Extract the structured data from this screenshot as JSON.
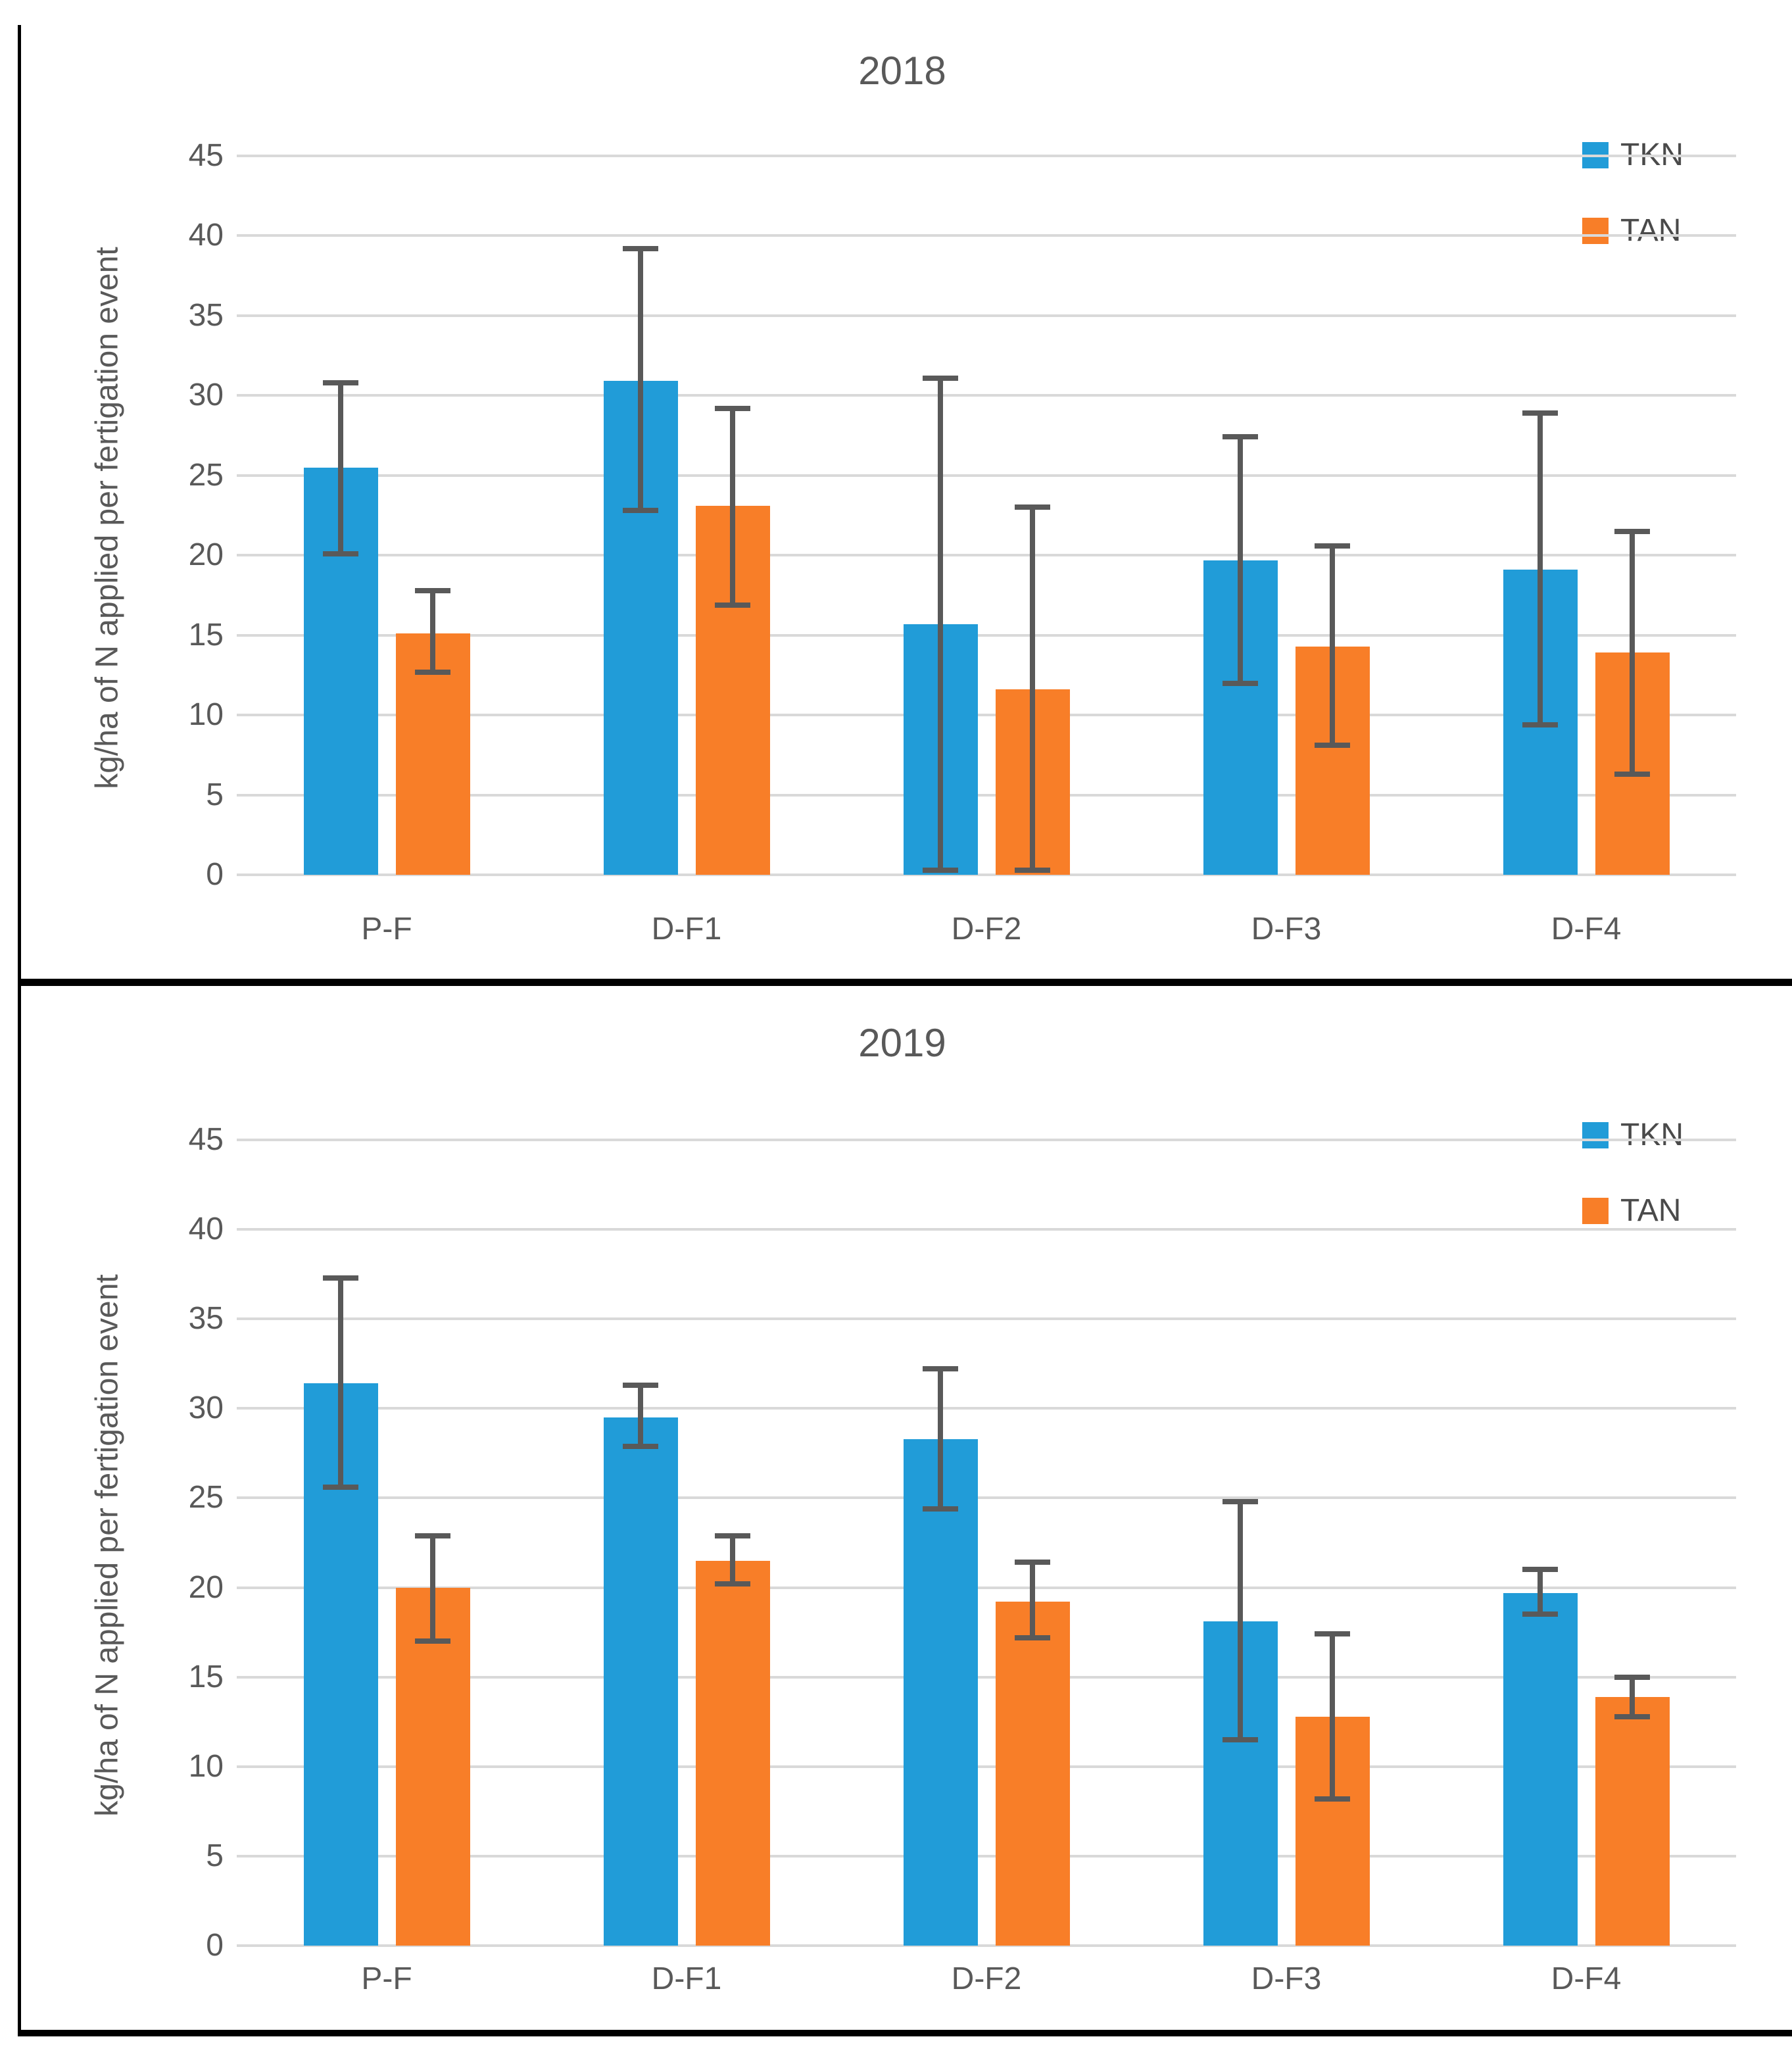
{
  "figure": {
    "background": "#ffffff",
    "border_color": "#000000",
    "gridline_color": "#D9D9D9",
    "error_bar_color": "#595959",
    "text_color": "#595959"
  },
  "chart_data": [
    {
      "type": "bar",
      "title": "2018",
      "ylabel": "kg/ha of N applied per fertigation event",
      "xlabel": "",
      "ylim": [
        0,
        45
      ],
      "yticks": [
        0,
        5,
        10,
        15,
        20,
        25,
        30,
        35,
        40,
        45
      ],
      "grid": true,
      "legend_position": "top-right",
      "categories": [
        "P-F",
        "D-F1",
        "D-F2",
        "D-F3",
        "D-F4"
      ],
      "series": [
        {
          "name": "TKN",
          "color": "#219CD8",
          "values": [
            25.5,
            30.9,
            15.7,
            19.7,
            19.1
          ],
          "error_low": [
            20.1,
            22.8,
            0.3,
            12.0,
            9.4
          ],
          "error_high": [
            30.8,
            39.2,
            31.1,
            27.4,
            28.9
          ]
        },
        {
          "name": "TAN",
          "color": "#F87E28",
          "values": [
            15.1,
            23.1,
            11.6,
            14.3,
            13.9
          ],
          "error_low": [
            12.7,
            16.9,
            0.3,
            8.1,
            6.3
          ],
          "error_high": [
            17.8,
            29.2,
            23.0,
            20.6,
            21.5
          ]
        }
      ]
    },
    {
      "type": "bar",
      "title": "2019",
      "ylabel": "kg/ha of N applied per fertigation event",
      "xlabel": "",
      "ylim": [
        0,
        45
      ],
      "yticks": [
        0,
        5,
        10,
        15,
        20,
        25,
        30,
        35,
        40,
        45
      ],
      "grid": true,
      "legend_position": "top-right",
      "categories": [
        "P-F",
        "D-F1",
        "D-F2",
        "D-F3",
        "D-F4"
      ],
      "series": [
        {
          "name": "TKN",
          "color": "#219CD8",
          "values": [
            31.4,
            29.5,
            28.3,
            18.1,
            19.7
          ],
          "error_low": [
            25.6,
            27.9,
            24.4,
            11.5,
            18.5
          ],
          "error_high": [
            37.3,
            31.3,
            32.2,
            24.8,
            21.0
          ]
        },
        {
          "name": "TAN",
          "color": "#F87E28",
          "values": [
            20.0,
            21.5,
            19.2,
            12.8,
            13.9
          ],
          "error_low": [
            17.0,
            20.2,
            17.2,
            8.2,
            12.8
          ],
          "error_high": [
            22.9,
            22.9,
            21.4,
            17.4,
            15.0
          ]
        }
      ]
    }
  ]
}
